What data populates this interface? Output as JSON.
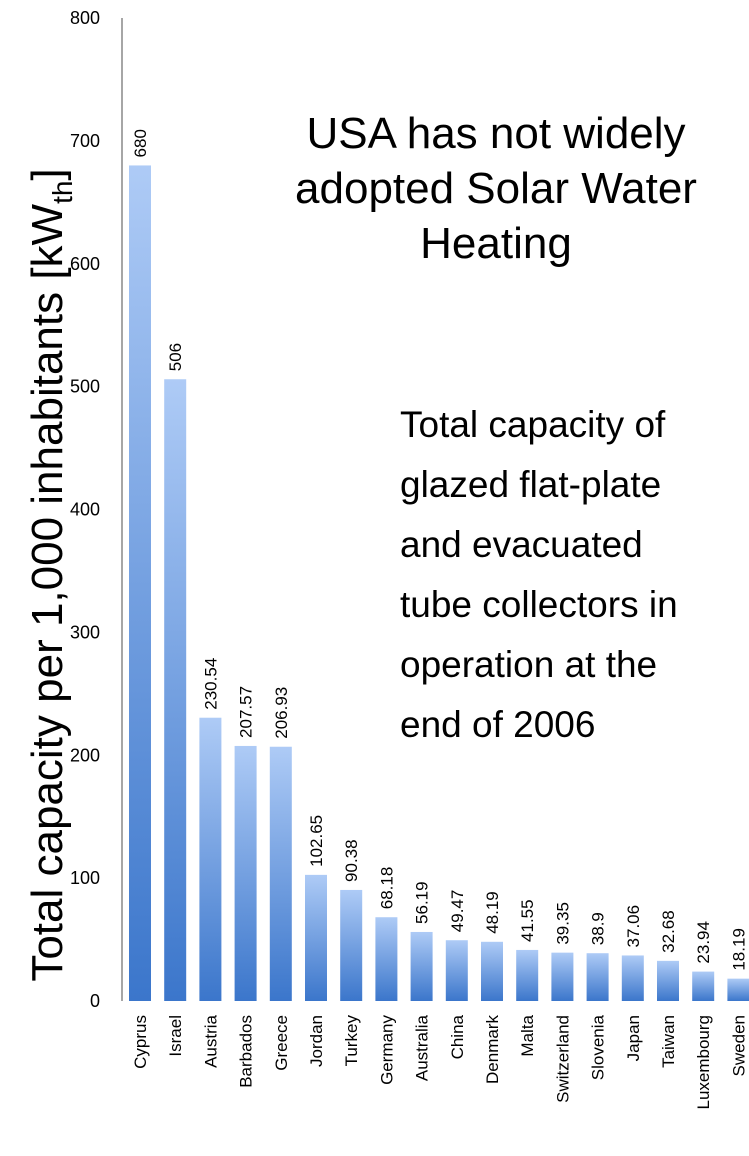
{
  "chart_data": {
    "type": "bar",
    "y_label": [
      "Total capacity per 1,000 inhabitants [kW",
      "th",
      "]"
    ],
    "annotations": [
      [
        "USA has not widely",
        "adopted Solar Water",
        "Heating"
      ],
      [
        "Total capacity of",
        "glazed flat-plate",
        "and evacuated",
        "tube collectors in",
        "operation at the",
        "end of 2006"
      ]
    ],
    "categories": [
      "Cyprus",
      "Israel",
      "Austria",
      "Barbados",
      "Greece",
      "Jordan",
      "Turkey",
      "Germany",
      "Australia",
      "China",
      "Denmark",
      "Malta",
      "Switzerland",
      "Slovenia",
      "Japan",
      "Taiwan",
      "Luxembourg",
      "Sweden"
    ],
    "values": [
      680,
      506,
      230.54,
      207.57,
      206.93,
      102.65,
      90.38,
      68.18,
      56.19,
      49.47,
      48.19,
      41.55,
      39.35,
      38.9,
      37.06,
      32.68,
      23.94,
      18.19
    ],
    "color": [
      "#aecbf6",
      "#3b76cb"
    ],
    "ylim": [
      0,
      800
    ],
    "yticks": [
      0,
      100,
      200,
      300,
      400,
      500,
      600,
      700,
      800
    ],
    "grid": false
  }
}
